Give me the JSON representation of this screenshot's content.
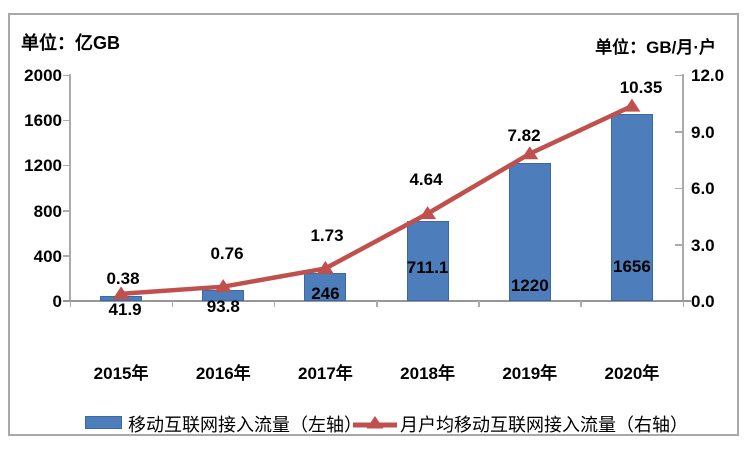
{
  "header": {
    "left_unit": "单位：亿GB",
    "right_unit": "单位：GB/月·户"
  },
  "legend": {
    "bar": {
      "label": "移动互联网接入流量（左轴）",
      "color": "#4d7ebb"
    },
    "line": {
      "label": "月户均移动互联网接入流量（右轴）",
      "color": "#c0504d"
    }
  },
  "colors": {
    "bar_fill": "#4d7ebb",
    "bar_border": "#3a6aa6",
    "line": "#c0504d",
    "axis": "#ababab",
    "text": "#000000"
  },
  "chart_data": {
    "type": "bar",
    "subtype": "combo-bar-line",
    "categories": [
      "2015年",
      "2016年",
      "2017年",
      "2018年",
      "2019年",
      "2020年"
    ],
    "series": [
      {
        "name": "移动互联网接入流量（左轴）",
        "type": "bar",
        "axis": "left",
        "values": [
          41.9,
          93.8,
          246,
          711.1,
          1220,
          1656
        ],
        "labels": [
          "41.9",
          "93.8",
          "246",
          "711.1",
          "1220",
          "1656"
        ],
        "color": "#4d7ebb"
      },
      {
        "name": "月户均移动互联网接入流量（右轴）",
        "type": "line",
        "axis": "right",
        "values": [
          0.38,
          0.76,
          1.73,
          4.64,
          7.82,
          10.35
        ],
        "labels": [
          "0.38",
          "0.76",
          "1.73",
          "4.64",
          "7.82",
          "10.35"
        ],
        "color": "#c0504d"
      }
    ],
    "left_axis": {
      "title": "单位：亿GB",
      "ticks": [
        "2000",
        "1600",
        "1200",
        "800",
        "400",
        "0"
      ],
      "min": 0,
      "max": 2000
    },
    "right_axis": {
      "title": "单位：GB/月·户",
      "ticks": [
        "12.0",
        "9.0",
        "6.0",
        "3.0",
        "0.0"
      ],
      "min": 0,
      "max": 12
    },
    "grid": false,
    "legend_position": "bottom"
  }
}
